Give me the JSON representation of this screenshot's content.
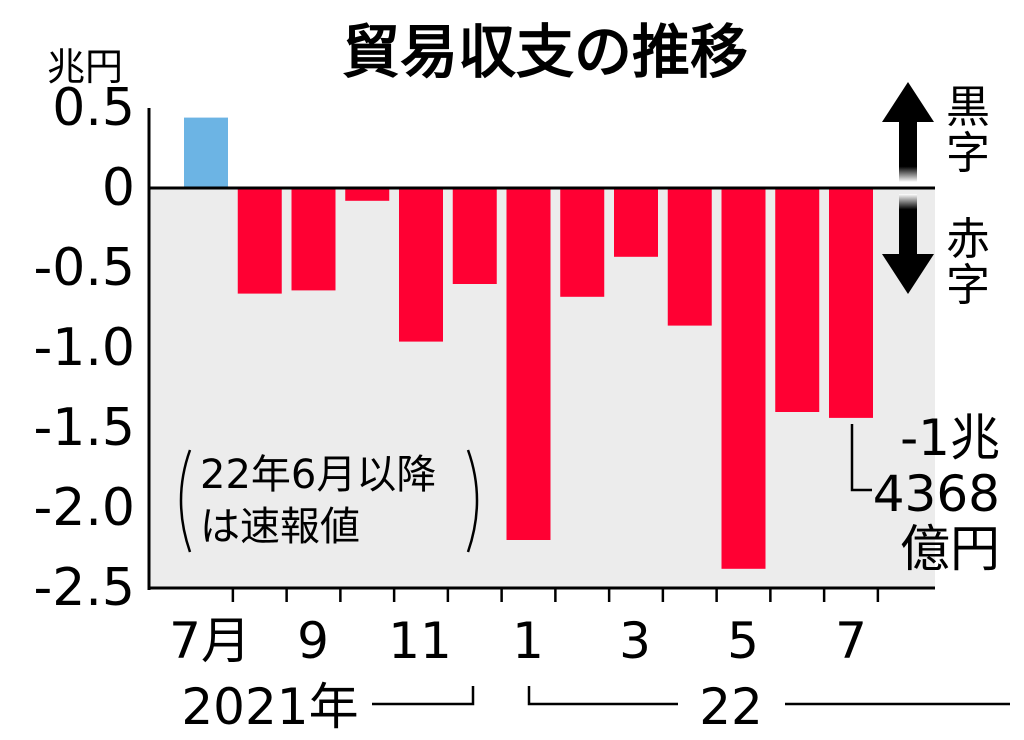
{
  "chart_data": {
    "type": "bar",
    "title": "貿易収支の推移",
    "ylabel": "兆円",
    "ylim": [
      -2.5,
      0.5
    ],
    "yticks": [
      "0.5",
      "0",
      "-0.5",
      "-1.0",
      "-1.5",
      "-2.0",
      "-2.5"
    ],
    "categories": [
      "2021-07",
      "2021-08",
      "2021-09",
      "2021-10",
      "2021-11",
      "2021-12",
      "2022-01",
      "2022-02",
      "2022-03",
      "2022-04",
      "2022-05",
      "2022-06",
      "2022-07"
    ],
    "values": [
      0.44,
      -0.66,
      -0.64,
      -0.08,
      -0.96,
      -0.6,
      -2.2,
      -0.68,
      -0.43,
      -0.86,
      -2.38,
      -1.4,
      -1.4368
    ],
    "xtick_labels": [
      "7月",
      "9",
      "11",
      "1",
      "3",
      "5",
      "7"
    ],
    "year_labels": [
      "2021年",
      "22"
    ],
    "colors": {
      "surplus": "#6cb4e4",
      "deficit": "#ff0033",
      "deficit_area": "#ececec"
    },
    "legend": {
      "up": "黒字",
      "down": "赤字"
    },
    "note": [
      "22年6月以降",
      "は速報値"
    ],
    "annotation": [
      "-1兆",
      "4368",
      "億円"
    ]
  }
}
